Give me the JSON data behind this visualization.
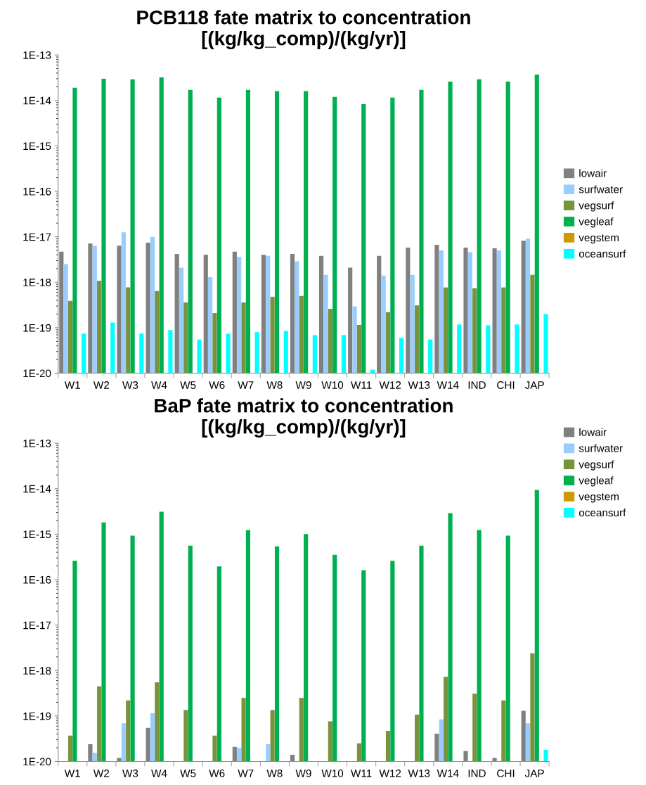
{
  "chart_data": [
    {
      "type": "bar",
      "title": "PCB118 fate matrix to concentration\n[(kg/kg_comp)/(kg/yr)]",
      "log": true,
      "legend": "right",
      "grid": false,
      "categories": [
        "W1",
        "W2",
        "W3",
        "W4",
        "W5",
        "W6",
        "W7",
        "W8",
        "W9",
        "W10",
        "W11",
        "W12",
        "W13",
        "W14",
        "IND",
        "CHI",
        "JAP"
      ],
      "ylim": [
        1e-20,
        1e-13
      ],
      "yticks": [
        {
          "value": 1e-20,
          "label": "1E-20"
        },
        {
          "value": 1e-19,
          "label": "1E-19"
        },
        {
          "value": 1e-18,
          "label": "1E-18"
        },
        {
          "value": 1e-17,
          "label": "1E-17"
        },
        {
          "value": 1e-16,
          "label": "1E-16"
        },
        {
          "value": 1e-15,
          "label": "1E-15"
        },
        {
          "value": 1e-14,
          "label": "1E-14"
        },
        {
          "value": 1e-13,
          "label": "1E-13"
        }
      ],
      "series": [
        {
          "name": "lowair",
          "color": "#808080",
          "values": [
            4.7e-18,
            7.1e-18,
            6.4e-18,
            7.4e-18,
            4.2e-18,
            4e-18,
            4.7e-18,
            4e-18,
            4.2e-18,
            3.8e-18,
            2.1e-18,
            3.8e-18,
            5.8e-18,
            6.7e-18,
            5.8e-18,
            5.6e-18,
            8.2e-18
          ]
        },
        {
          "name": "surfwater",
          "color": "#99ccff",
          "values": [
            2.5e-18,
            6.4e-18,
            1.26e-17,
            1e-17,
            2.1e-18,
            1.3e-18,
            3.6e-18,
            3.8e-18,
            2.9e-18,
            1.45e-18,
            2.95e-19,
            1.4e-18,
            1.45e-18,
            5e-18,
            4.6e-18,
            5e-18,
            9.1e-18
          ]
        },
        {
          "name": "vegsurf",
          "color": "#77933c",
          "values": [
            3.9e-19,
            1.08e-18,
            7.7e-19,
            6.4e-19,
            3.6e-19,
            2.1e-19,
            3.6e-19,
            4.8e-19,
            5e-19,
            2.6e-19,
            1.15e-19,
            2.2e-19,
            3.1e-19,
            7.7e-19,
            7.4e-19,
            7.7e-19,
            1.45e-18
          ]
        },
        {
          "name": "vegleaf",
          "color": "#00b050",
          "values": [
            1.9e-14,
            3e-14,
            2.9e-14,
            3.2e-14,
            1.7e-14,
            1.15e-14,
            1.7e-14,
            1.6e-14,
            1.6e-14,
            1.2e-14,
            8.3e-15,
            1.15e-14,
            1.7e-14,
            2.6e-14,
            2.9e-14,
            2.6e-14,
            3.7e-14
          ]
        },
        {
          "name": "vegstem",
          "color": "#cc9900",
          "values": [
            null,
            null,
            null,
            null,
            null,
            null,
            null,
            null,
            null,
            null,
            null,
            null,
            null,
            null,
            null,
            null,
            null
          ]
        },
        {
          "name": "oceansurf",
          "color": "#00ffff",
          "values": [
            7.4e-20,
            1.3e-19,
            7.4e-20,
            8.9e-20,
            5.5e-20,
            7.4e-20,
            8e-20,
            8.5e-20,
            6.9e-20,
            6.9e-20,
            1.2e-20,
            6e-20,
            5.5e-20,
            1.18e-19,
            1.13e-19,
            1.18e-19,
            2e-19
          ]
        }
      ]
    },
    {
      "type": "bar",
      "title": "BaP fate matrix to concentration\n[(kg/kg_comp)/(kg/yr)]",
      "log": true,
      "legend": "top right",
      "grid": false,
      "categories": [
        "W1",
        "W2",
        "W3",
        "W4",
        "W5",
        "W6",
        "W7",
        "W8",
        "W9",
        "W10",
        "W11",
        "W12",
        "W13",
        "W14",
        "IND",
        "CHI",
        "JAP"
      ],
      "ylim": [
        1e-20,
        1e-13
      ],
      "yticks": [
        {
          "value": 1e-20,
          "label": "1E-20"
        },
        {
          "value": 1e-19,
          "label": "1E-19"
        },
        {
          "value": 1e-18,
          "label": "1E-18"
        },
        {
          "value": 1e-17,
          "label": "1E-17"
        },
        {
          "value": 1e-16,
          "label": "1E-16"
        },
        {
          "value": 1e-15,
          "label": "1E-15"
        },
        {
          "value": 1e-14,
          "label": "1E-14"
        },
        {
          "value": 1e-13,
          "label": "1E-13"
        }
      ],
      "series": [
        {
          "name": "lowair",
          "color": "#808080",
          "values": [
            null,
            2.4e-20,
            1.2e-20,
            5.5e-20,
            null,
            null,
            2.1e-20,
            null,
            1.4e-20,
            null,
            null,
            null,
            null,
            4.1e-20,
            1.7e-20,
            1.2e-20,
            1.3e-19
          ]
        },
        {
          "name": "surfwater",
          "color": "#99ccff",
          "values": [
            null,
            1.55e-20,
            6.9e-20,
            1.16e-19,
            null,
            null,
            1.98e-20,
            2.4e-20,
            null,
            null,
            null,
            null,
            null,
            8.4e-20,
            null,
            null,
            6.9e-20
          ]
        },
        {
          "name": "vegsurf",
          "color": "#77933c",
          "values": [
            3.7e-20,
            4.5e-19,
            2.2e-19,
            5.5e-19,
            1.35e-19,
            3.7e-20,
            2.5e-19,
            1.35e-19,
            2.5e-19,
            7.6e-20,
            2.5e-20,
            4.7e-20,
            1.07e-19,
            7.3e-19,
            3.1e-19,
            2.2e-19,
            2.4e-18
          ]
        },
        {
          "name": "vegleaf",
          "color": "#00b050",
          "values": [
            2.6e-16,
            1.8e-15,
            9.3e-16,
            3.1e-15,
            5.6e-16,
            1.95e-16,
            1.23e-15,
            5.4e-16,
            1e-15,
            3.5e-16,
            1.6e-16,
            2.6e-16,
            5.6e-16,
            2.9e-15,
            1.23e-15,
            9.3e-16,
            9.4e-15
          ]
        },
        {
          "name": "vegstem",
          "color": "#cc9900",
          "values": [
            null,
            null,
            null,
            null,
            null,
            null,
            null,
            null,
            null,
            null,
            null,
            null,
            null,
            null,
            null,
            null,
            null
          ]
        },
        {
          "name": "oceansurf",
          "color": "#00ffff",
          "values": [
            null,
            null,
            null,
            null,
            null,
            null,
            null,
            null,
            null,
            null,
            null,
            null,
            null,
            null,
            null,
            null,
            1.8e-20
          ]
        }
      ]
    }
  ]
}
